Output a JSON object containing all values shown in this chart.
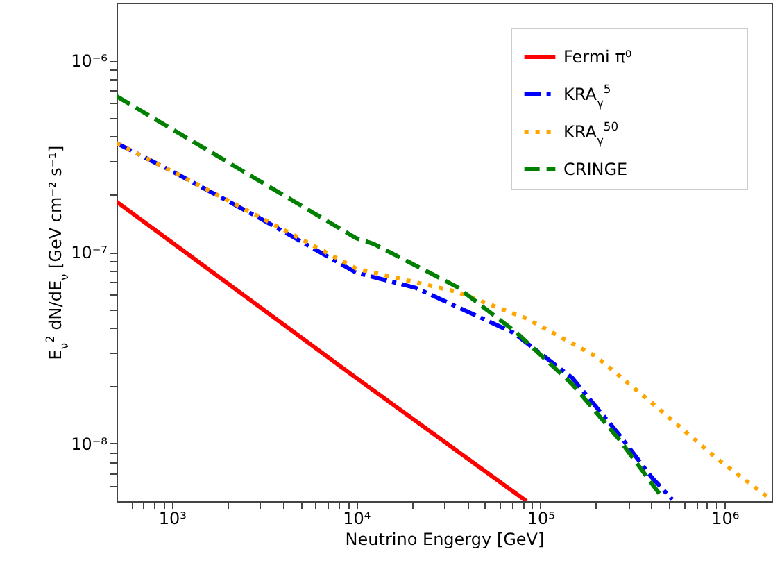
{
  "chart_data": {
    "type": "line",
    "xlabel": "Neutrino Engergy [GeV]",
    "ylabel": "E$_{ν}$$^{2}$ dN/dE$_{ν}$ [GeV cm⁻² s⁻¹]",
    "log": "xy",
    "grid": false,
    "legend": "top right",
    "marker": "none",
    "xlim": [
      500,
      1800000
    ],
    "ylim": [
      5e-09,
      2e-06
    ],
    "xticks": [
      {
        "value": 600,
        "label": null
      },
      {
        "value": 700,
        "label": null
      },
      {
        "value": 800,
        "label": null
      },
      {
        "value": 900,
        "label": null
      },
      {
        "value": 1000,
        "label": "10³"
      },
      {
        "value": 2000,
        "label": null
      },
      {
        "value": 3000,
        "label": null
      },
      {
        "value": 4000,
        "label": null
      },
      {
        "value": 5000,
        "label": null
      },
      {
        "value": 6000,
        "label": null
      },
      {
        "value": 7000,
        "label": null
      },
      {
        "value": 8000,
        "label": null
      },
      {
        "value": 9000,
        "label": null
      },
      {
        "value": 10000,
        "label": "10⁴"
      },
      {
        "value": 20000,
        "label": null
      },
      {
        "value": 30000,
        "label": null
      },
      {
        "value": 40000,
        "label": null
      },
      {
        "value": 50000,
        "label": null
      },
      {
        "value": 60000,
        "label": null
      },
      {
        "value": 70000,
        "label": null
      },
      {
        "value": 80000,
        "label": null
      },
      {
        "value": 90000,
        "label": null
      },
      {
        "value": 100000,
        "label": "10⁵"
      },
      {
        "value": 200000,
        "label": null
      },
      {
        "value": 300000,
        "label": null
      },
      {
        "value": 400000,
        "label": null
      },
      {
        "value": 500000,
        "label": null
      },
      {
        "value": 600000,
        "label": null
      },
      {
        "value": 700000,
        "label": null
      },
      {
        "value": 800000,
        "label": null
      },
      {
        "value": 900000,
        "label": null
      },
      {
        "value": 1000000,
        "label": "10⁶"
      }
    ],
    "yticks": [
      {
        "value": 6e-09,
        "label": null
      },
      {
        "value": 7e-09,
        "label": null
      },
      {
        "value": 8e-09,
        "label": null
      },
      {
        "value": 9e-09,
        "label": null
      },
      {
        "value": 1e-08,
        "label": "10⁻⁸"
      },
      {
        "value": 2e-08,
        "label": null
      },
      {
        "value": 3e-08,
        "label": null
      },
      {
        "value": 4e-08,
        "label": null
      },
      {
        "value": 5e-08,
        "label": null
      },
      {
        "value": 6e-08,
        "label": null
      },
      {
        "value": 7e-08,
        "label": null
      },
      {
        "value": 8e-08,
        "label": null
      },
      {
        "value": 9e-08,
        "label": null
      },
      {
        "value": 1e-07,
        "label": "10⁻⁷"
      },
      {
        "value": 2e-07,
        "label": null
      },
      {
        "value": 3e-07,
        "label": null
      },
      {
        "value": 4e-07,
        "label": null
      },
      {
        "value": 5e-07,
        "label": null
      },
      {
        "value": 6e-07,
        "label": null
      },
      {
        "value": 7e-07,
        "label": null
      },
      {
        "value": 8e-07,
        "label": null
      },
      {
        "value": 9e-07,
        "label": null
      },
      {
        "value": 1e-06,
        "label": "10⁻⁶"
      }
    ],
    "series": [
      {
        "name": "Fermi π⁰",
        "color": "#ff0000",
        "line_style": "solid",
        "x": [
          500,
          10000,
          84000
        ],
        "values": [
          1.83e-07,
          2.2e-08,
          5e-09
        ]
      },
      {
        "name": "KRA$_{γ}$$^{5}$",
        "color": "#0000ff",
        "line_style": "dashdot",
        "x": [
          500,
          1000,
          3000,
          10000,
          21000,
          71000,
          149000,
          270000,
          400000,
          520000
        ],
        "values": [
          3.7e-07,
          2.64e-07,
          1.5e-07,
          7.8e-08,
          6.5e-08,
          3.8e-08,
          2.2e-08,
          1.1e-08,
          6.7e-09,
          5.1e-09
        ]
      },
      {
        "name": "KRA$_{γ}$$^{50}$",
        "color": "#ffa500",
        "line_style": "dotted",
        "x": [
          500,
          1000,
          3000,
          10000,
          12500,
          35000,
          84000,
          200000,
          400000,
          900000,
          1740000
        ],
        "values": [
          3.7e-07,
          2.64e-07,
          1.52e-07,
          8.2e-08,
          7.8e-08,
          6.2e-08,
          4.5e-08,
          2.85e-08,
          1.64e-08,
          8.4e-09,
          5.2e-09
        ]
      },
      {
        "name": "CRINGE",
        "color": "#008000",
        "line_style": "dashed",
        "x": [
          500,
          10000,
          12500,
          35000,
          74000,
          149000,
          270000,
          460000
        ],
        "values": [
          6.5e-07,
          1.18e-07,
          1.1e-07,
          6.6e-08,
          3.8e-08,
          2.04e-08,
          1.04e-08,
          5.2e-09
        ]
      }
    ]
  }
}
